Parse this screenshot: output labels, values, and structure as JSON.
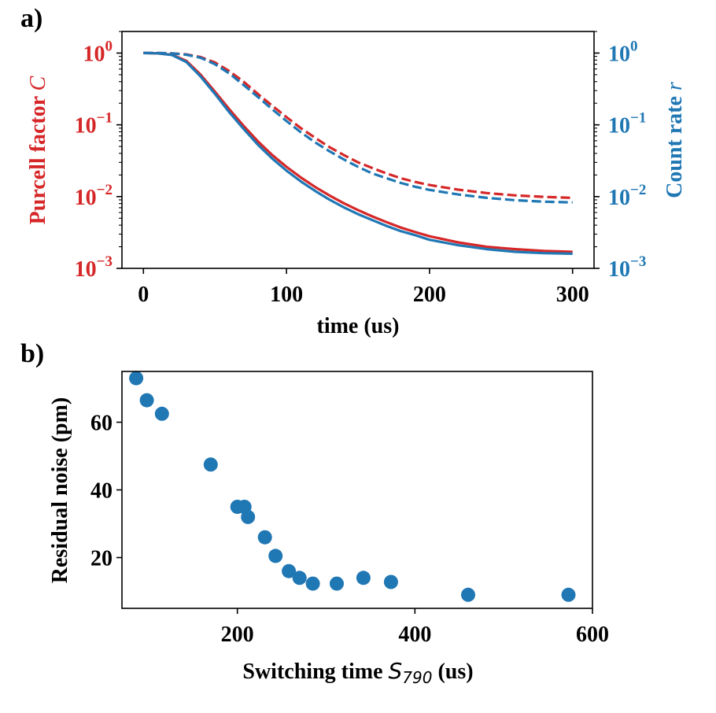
{
  "panel_labels": {
    "a": "a)",
    "b": "b)"
  },
  "colors": {
    "red": "#d62728",
    "blue": "#1f77b4",
    "black": "#000000"
  },
  "chart_data": [
    {
      "type": "line",
      "title": "",
      "xlabel": "time (us)",
      "ylabel": "Purcell factor C",
      "ylabel_main": "Purcell factor ",
      "ylabel_sym": "C",
      "y2label": "Count rate r",
      "y2label_main": "Count rate ",
      "y2label_sym": "r",
      "xlim": [
        -15,
        315
      ],
      "ylim": [
        0.001,
        2
      ],
      "y2lim": [
        0.001,
        2
      ],
      "yscale": "log",
      "xticks": [
        {
          "value": 0,
          "label": "0"
        },
        {
          "value": 100,
          "label": "100"
        },
        {
          "value": 200,
          "label": "200"
        },
        {
          "value": 300,
          "label": "300"
        }
      ],
      "yticks": [
        {
          "value": 1,
          "base": "10",
          "exp": "0"
        },
        {
          "value": 0.1,
          "base": "10",
          "exp": "−1"
        },
        {
          "value": 0.01,
          "base": "10",
          "exp": "−2"
        },
        {
          "value": 0.001,
          "base": "10",
          "exp": "−3"
        }
      ],
      "series": [
        {
          "name": "Purcell factor C (solid)",
          "color": "#d62728",
          "style": "solid",
          "axis": "left",
          "x": [
            0,
            10,
            20,
            30,
            40,
            50,
            60,
            70,
            80,
            90,
            100,
            110,
            120,
            130,
            140,
            150,
            160,
            170,
            180,
            190,
            200,
            220,
            240,
            260,
            280,
            300
          ],
          "y": [
            1,
            0.99,
            0.95,
            0.78,
            0.5,
            0.29,
            0.165,
            0.097,
            0.059,
            0.038,
            0.026,
            0.0185,
            0.0136,
            0.0104,
            0.0081,
            0.0065,
            0.0053,
            0.0044,
            0.0037,
            0.0032,
            0.0028,
            0.0023,
            0.002,
            0.00185,
            0.00175,
            0.0017
          ]
        },
        {
          "name": "Count rate r (solid)",
          "color": "#1f77b4",
          "style": "solid",
          "axis": "right",
          "x": [
            0,
            10,
            20,
            30,
            40,
            50,
            60,
            70,
            80,
            90,
            100,
            110,
            120,
            130,
            140,
            150,
            160,
            170,
            180,
            190,
            200,
            220,
            240,
            260,
            280,
            300
          ],
          "y": [
            1,
            0.99,
            0.94,
            0.75,
            0.47,
            0.27,
            0.15,
            0.088,
            0.053,
            0.034,
            0.023,
            0.0163,
            0.012,
            0.0091,
            0.0071,
            0.0057,
            0.0047,
            0.0039,
            0.0033,
            0.0029,
            0.0025,
            0.0021,
            0.00185,
            0.0017,
            0.00163,
            0.0016
          ]
        },
        {
          "name": "Purcell factor C (dashed)",
          "color": "#d62728",
          "style": "dashed",
          "axis": "left",
          "x": [
            0,
            10,
            20,
            30,
            40,
            50,
            60,
            70,
            80,
            90,
            100,
            110,
            120,
            130,
            140,
            150,
            160,
            170,
            180,
            190,
            200,
            220,
            240,
            260,
            280,
            300
          ],
          "y": [
            1,
            1,
            0.99,
            0.96,
            0.88,
            0.74,
            0.56,
            0.4,
            0.27,
            0.185,
            0.128,
            0.09,
            0.066,
            0.049,
            0.038,
            0.03,
            0.025,
            0.021,
            0.018,
            0.016,
            0.0145,
            0.0125,
            0.0112,
            0.0104,
            0.0099,
            0.0096
          ]
        },
        {
          "name": "Count rate r (dashed)",
          "color": "#1f77b4",
          "style": "dashed",
          "axis": "right",
          "x": [
            0,
            10,
            20,
            30,
            40,
            50,
            60,
            70,
            80,
            90,
            100,
            110,
            120,
            130,
            140,
            150,
            160,
            170,
            180,
            190,
            200,
            220,
            240,
            260,
            280,
            300
          ],
          "y": [
            1,
            1,
            0.99,
            0.95,
            0.86,
            0.7,
            0.52,
            0.36,
            0.245,
            0.165,
            0.113,
            0.079,
            0.057,
            0.043,
            0.033,
            0.026,
            0.021,
            0.018,
            0.0155,
            0.0137,
            0.0124,
            0.0107,
            0.0096,
            0.0089,
            0.0085,
            0.0083
          ]
        }
      ]
    },
    {
      "type": "scatter",
      "title": "",
      "xlabel": "Switching time S790 (us)",
      "xlabel_pre": "Switching time ",
      "xlabel_sym": "S",
      "xlabel_sub": "790",
      "xlabel_post": " (us)",
      "ylabel": "Residual noise (pm)",
      "xlim": [
        70,
        600
      ],
      "ylim": [
        5,
        75
      ],
      "xticks": [
        {
          "value": 200,
          "label": "200"
        },
        {
          "value": 400,
          "label": "400"
        },
        {
          "value": 600,
          "label": "600"
        }
      ],
      "yticks": [
        {
          "value": 20,
          "label": "20"
        },
        {
          "value": 40,
          "label": "40"
        },
        {
          "value": 60,
          "label": "60"
        }
      ],
      "series": [
        {
          "name": "Residual noise",
          "color": "#1f77b4",
          "x": [
            86,
            98,
            115,
            170,
            200,
            208,
            212,
            231,
            243,
            258,
            270,
            285,
            312,
            342,
            373,
            460,
            573
          ],
          "y": [
            73,
            66.5,
            62.5,
            47.5,
            35,
            35,
            32,
            26,
            20.5,
            16,
            14,
            12.3,
            12.3,
            14,
            12.8,
            9,
            9
          ]
        }
      ]
    }
  ]
}
